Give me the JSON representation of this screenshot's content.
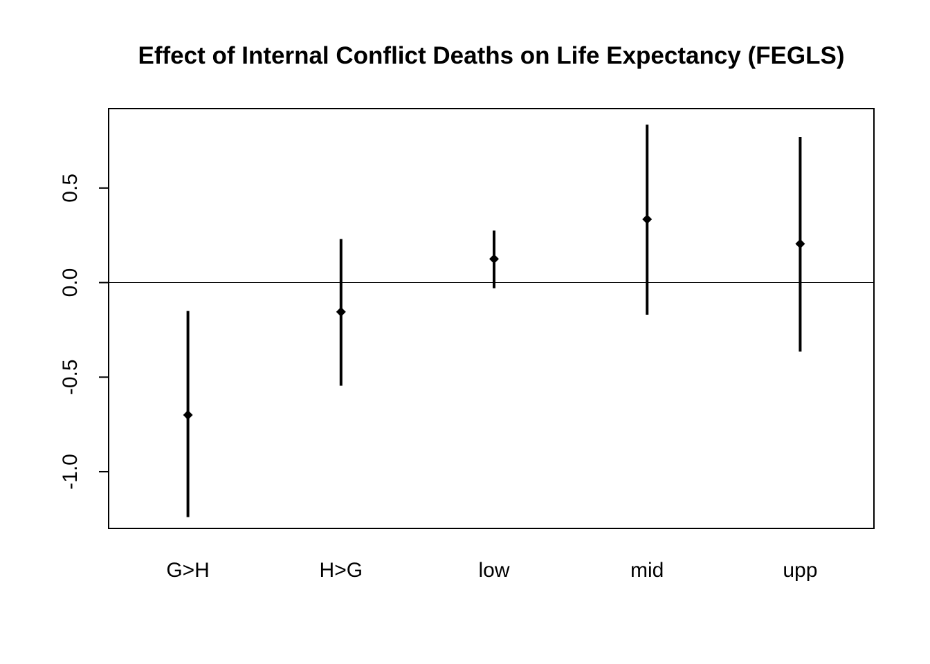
{
  "chart_data": {
    "type": "errorbar",
    "title": "Effect of Internal Conflict Deaths on Life Expectancy (FEGLS)",
    "xlabel": "",
    "ylabel": "",
    "categories": [
      "G>H",
      "H>G",
      "low",
      "mid",
      "upp"
    ],
    "estimates": [
      -0.7,
      -0.155,
      0.125,
      0.335,
      0.205
    ],
    "lower": [
      -1.24,
      -0.545,
      -0.03,
      -0.17,
      -0.365
    ],
    "upper": [
      -0.15,
      0.23,
      0.275,
      0.835,
      0.77
    ],
    "ylim": [
      -1.3,
      0.92
    ],
    "yticks": [
      -1.0,
      -0.5,
      0.0,
      0.5
    ],
    "ytick_labels": [
      "-1.0",
      "-0.5",
      "0.0",
      "0.5"
    ],
    "reference_line": 0.0,
    "grid": false,
    "colors": {
      "marks": "#000000",
      "reference_line": "#000000",
      "frame": "#000000",
      "background": "#ffffff"
    }
  }
}
